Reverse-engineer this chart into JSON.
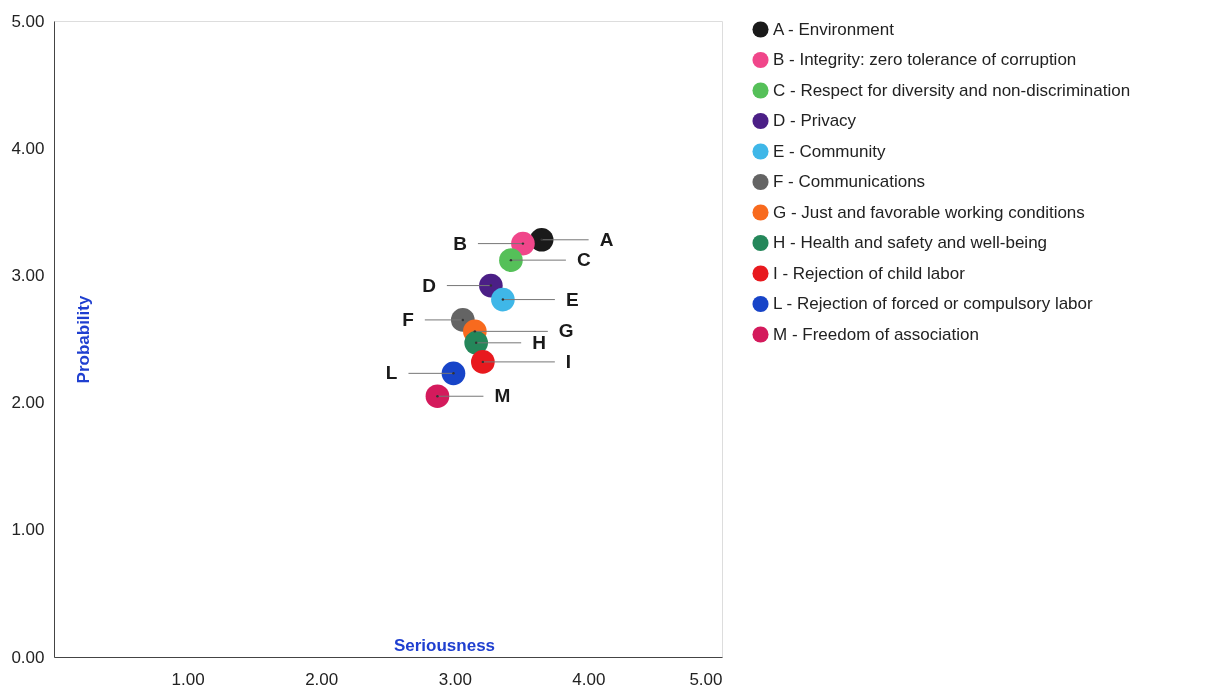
{
  "chart_data": {
    "type": "scatter",
    "xlabel": "Seriousness",
    "ylabel": "Probability",
    "xlim": [
      0,
      5
    ],
    "ylim": [
      0,
      5
    ],
    "xticks": [
      {
        "value": 1,
        "label": "1.00"
      },
      {
        "value": 2,
        "label": "2.00"
      },
      {
        "value": 3,
        "label": "3.00"
      },
      {
        "value": 4,
        "label": "4.00"
      },
      {
        "value": 5,
        "label": "5.00"
      }
    ],
    "yticks": [
      {
        "value": 0,
        "label": "0.00"
      },
      {
        "value": 1,
        "label": "1.00"
      },
      {
        "value": 2,
        "label": "2.00"
      },
      {
        "value": 3,
        "label": "3.00"
      },
      {
        "value": 4,
        "label": "4.00"
      },
      {
        "value": 5,
        "label": "5.00"
      }
    ],
    "grid": false,
    "legend": "right",
    "marker": "circle",
    "series": [
      {
        "name": "A - Environment",
        "color": "#1a1a1a",
        "x": [
          3.65
        ],
        "values": [
          3.28
        ]
      },
      {
        "name": "B - Integrity: zero tolerance of corruption",
        "color": "#f0468a",
        "x": [
          3.51
        ],
        "values": [
          3.25
        ]
      },
      {
        "name": "C - Respect for diversity and non-discrimination",
        "color": "#55c059",
        "x": [
          3.42
        ],
        "values": [
          3.12
        ]
      },
      {
        "name": "D - Privacy",
        "color": "#4b1f86",
        "x": [
          3.27
        ],
        "values": [
          2.92
        ]
      },
      {
        "name": "E - Community",
        "color": "#3fb7e8",
        "x": [
          3.36
        ],
        "values": [
          2.81
        ]
      },
      {
        "name": "F - Communications",
        "color": "#646464",
        "x": [
          3.06
        ],
        "values": [
          2.65
        ]
      },
      {
        "name": "G - Just and favorable working conditions",
        "color": "#f86a1e",
        "x": [
          3.15
        ],
        "values": [
          2.56
        ]
      },
      {
        "name": "H - Health and safety and well-being",
        "color": "#24875a",
        "x": [
          3.16
        ],
        "values": [
          2.47
        ]
      },
      {
        "name": "I - Rejection of child labor",
        "color": "#e8191e",
        "x": [
          3.21
        ],
        "values": [
          2.32
        ]
      },
      {
        "name": "L - Rejection of forced or compulsory labor",
        "color": "#1744c8",
        "x": [
          2.99
        ],
        "values": [
          2.23
        ]
      },
      {
        "name": "M - Freedom of association",
        "color": "#d41a5c",
        "x": [
          2.87
        ],
        "values": [
          2.05
        ]
      }
    ],
    "annotations": [
      {
        "text": "A",
        "x": 3.65,
        "y": 3.28
      },
      {
        "text": "B",
        "x": 3.51,
        "y": 3.25
      },
      {
        "text": "C",
        "x": 3.42,
        "y": 3.12
      },
      {
        "text": "D",
        "x": 3.27,
        "y": 2.92
      },
      {
        "text": "E",
        "x": 3.36,
        "y": 2.81
      },
      {
        "text": "F",
        "x": 3.06,
        "y": 2.65
      },
      {
        "text": "G",
        "x": 3.15,
        "y": 2.56
      },
      {
        "text": "H",
        "x": 3.16,
        "y": 2.47
      },
      {
        "text": "I",
        "x": 3.21,
        "y": 2.32
      },
      {
        "text": "L",
        "x": 2.99,
        "y": 2.23
      },
      {
        "text": "M",
        "x": 2.87,
        "y": 2.05
      }
    ]
  }
}
